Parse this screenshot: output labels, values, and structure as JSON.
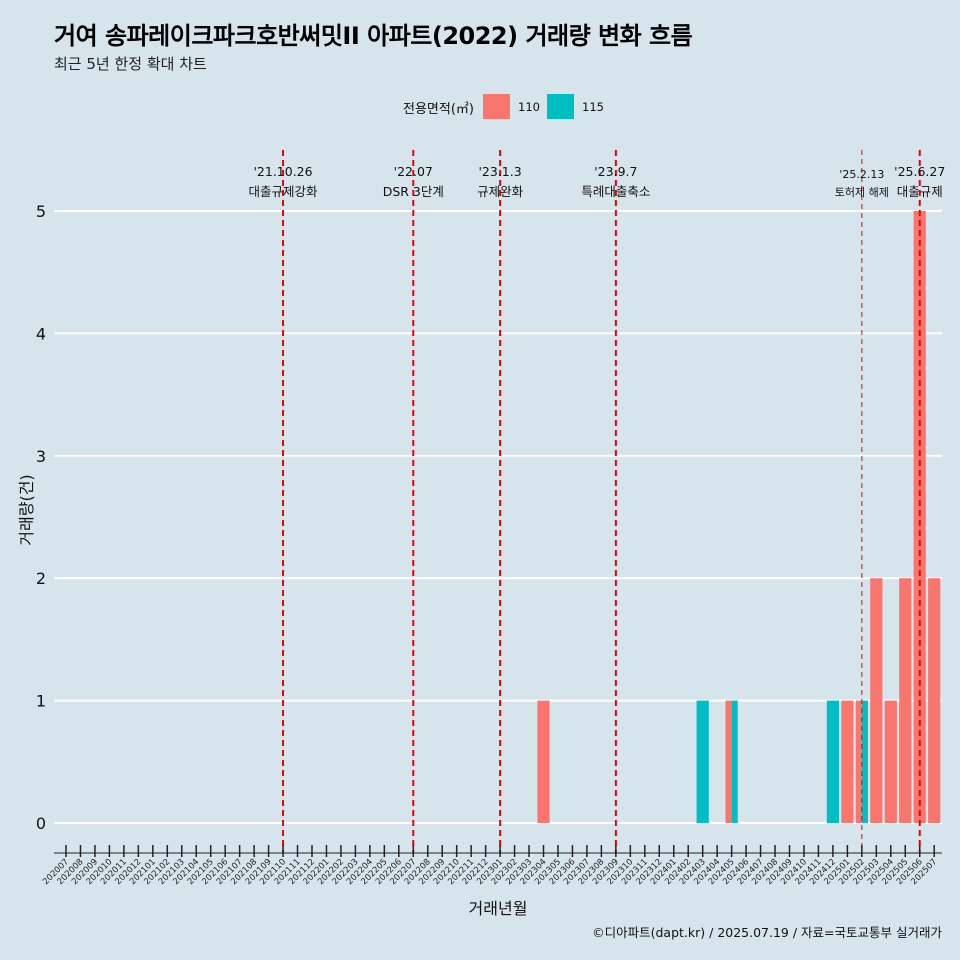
{
  "title": "거여 송파레이크파크호반써밋II 아파트(2022) 거래량 변화 흐름",
  "subtitle": "최근 5년 한정 확대 차트",
  "caption": "©디아파트(dapt.kr) / 2025.07.19 / 자료=국토교통부 실거래가",
  "colors": {
    "background": "#d6e4ec",
    "s110": "#f8766d",
    "s115": "#00bfc4",
    "event_line": "#ee0000"
  },
  "chart_data": {
    "type": "bar",
    "title": "거여 송파레이크파크호반써밋II 아파트(2022) 거래량 변화 흐름",
    "subtitle": "최근 5년 한정 확대 차트",
    "xlabel": "거래년월",
    "ylabel": "거래량(건)",
    "ylim": [
      0,
      5
    ],
    "yticks": [
      0,
      1,
      2,
      3,
      4,
      5
    ],
    "grid": true,
    "legend": {
      "title": "전용면적(㎡)",
      "position": "top"
    },
    "categories": [
      "202007",
      "202008",
      "202009",
      "202010",
      "202011",
      "202012",
      "202101",
      "202102",
      "202103",
      "202104",
      "202105",
      "202106",
      "202107",
      "202108",
      "202109",
      "202110",
      "202111",
      "202112",
      "202201",
      "202202",
      "202203",
      "202204",
      "202205",
      "202206",
      "202207",
      "202208",
      "202209",
      "202210",
      "202211",
      "202212",
      "202301",
      "202302",
      "202303",
      "202304",
      "202305",
      "202306",
      "202307",
      "202308",
      "202309",
      "202310",
      "202311",
      "202312",
      "202401",
      "202402",
      "202403",
      "202404",
      "202405",
      "202406",
      "202407",
      "202408",
      "202409",
      "202410",
      "202411",
      "202412",
      "202501",
      "202502",
      "202503",
      "202504",
      "202505",
      "202506",
      "202507"
    ],
    "series": [
      {
        "name": "110",
        "color": "#f8766d",
        "points": [
          [
            "202304",
            1
          ],
          [
            "202405",
            1
          ],
          [
            "202501",
            1
          ],
          [
            "202502",
            1
          ],
          [
            "202503",
            2
          ],
          [
            "202504",
            1
          ],
          [
            "202505",
            2
          ],
          [
            "202506",
            5
          ],
          [
            "202507",
            2
          ]
        ]
      },
      {
        "name": "115",
        "color": "#00bfc4",
        "points": [
          [
            "202403",
            1
          ],
          [
            "202405",
            1
          ],
          [
            "202412",
            1
          ],
          [
            "202502",
            1
          ]
        ]
      }
    ],
    "events": [
      {
        "month": "202110",
        "date": "'21.10.26",
        "label": "대출규제강화",
        "style": "bold"
      },
      {
        "month": "202207",
        "date": "'22.07",
        "label": "DSR 3단계",
        "style": "bold"
      },
      {
        "month": "202301",
        "date": "'23.1.3",
        "label": "규제완화",
        "style": "bold"
      },
      {
        "month": "202309",
        "date": "'23.9.7",
        "label": "특례대출축소",
        "style": "bold"
      },
      {
        "month": "202502",
        "date": "'25.2.13",
        "label": "토허제 해제",
        "style": "thin"
      },
      {
        "month": "202506",
        "date": "'25.6.27",
        "label": "대출규제",
        "style": "bold"
      }
    ]
  }
}
